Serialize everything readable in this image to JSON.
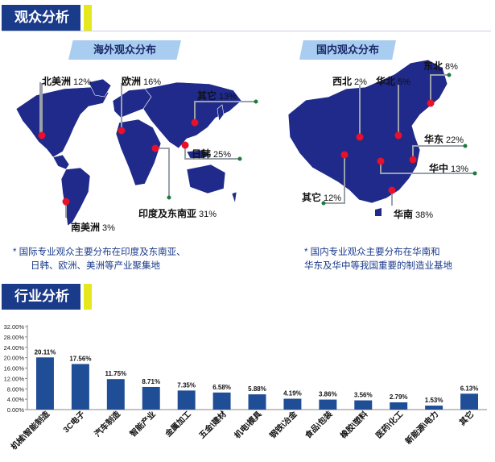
{
  "sections": {
    "audience_title": "观众分析",
    "industry_title": "行业分析"
  },
  "overseas": {
    "banner": "海外观众分布",
    "regions": [
      {
        "name": "北美洲",
        "pct": "12%"
      },
      {
        "name": "欧洲",
        "pct": "16%"
      },
      {
        "name": "其它",
        "pct": "13%"
      },
      {
        "name": "日韩",
        "pct": "25%"
      },
      {
        "name": "印度及东南亚",
        "pct": "31%"
      },
      {
        "name": "南美洲",
        "pct": "3%"
      }
    ],
    "note_line1": "*  国际专业观众主要分布在印度及东南亚、",
    "note_line2": "日韩、欧洲、美洲等产业聚集地"
  },
  "domestic": {
    "banner": "国内观众分布",
    "regions": [
      {
        "name": "东北",
        "pct": "8%"
      },
      {
        "name": "西北",
        "pct": "2%"
      },
      {
        "name": "华北",
        "pct": "5%"
      },
      {
        "name": "华东",
        "pct": "22%"
      },
      {
        "name": "华中",
        "pct": "13%"
      },
      {
        "name": "其它",
        "pct": "12%"
      },
      {
        "name": "华南",
        "pct": "38%"
      }
    ],
    "note_line1": "*  国内专业观众主要分布在华南和",
    "note_line2": "华东及华中等我国重要的制造业基地"
  },
  "colors": {
    "navy": "#1a3a8a",
    "bar": "#1f4e96",
    "accent": "#e6e81f",
    "banner": "#a9cdf0",
    "dot": "#e8102a",
    "green": "#1e7a3c"
  },
  "chart_data": {
    "type": "bar",
    "categories": [
      "机械\\智能制造",
      "3C电子",
      "汽车制造",
      "智能产业",
      "金属加工",
      "五金\\建材",
      "机电\\模具",
      "钢铁\\冶金",
      "食品\\包装",
      "橡胶\\塑料",
      "医药\\化工",
      "新能源\\电力",
      "其它"
    ],
    "values": [
      20.11,
      17.56,
      11.75,
      8.71,
      7.35,
      6.58,
      5.88,
      4.19,
      3.86,
      3.56,
      2.79,
      1.53,
      6.13
    ],
    "value_labels": [
      "20.11%",
      "17.56%",
      "11.75%",
      "8.71%",
      "7.35%",
      "6.58%",
      "5.88%",
      "4.19%",
      "3.86%",
      "3.56%",
      "2.79%",
      "1.53%",
      "6.13%"
    ],
    "yticks": [
      "0.00%",
      "4.00%",
      "8.00%",
      "12.00%",
      "16.00%",
      "20.00%",
      "24.00%",
      "28.00%",
      "32.00%"
    ],
    "ylim": [
      0,
      32
    ],
    "grid": false
  }
}
